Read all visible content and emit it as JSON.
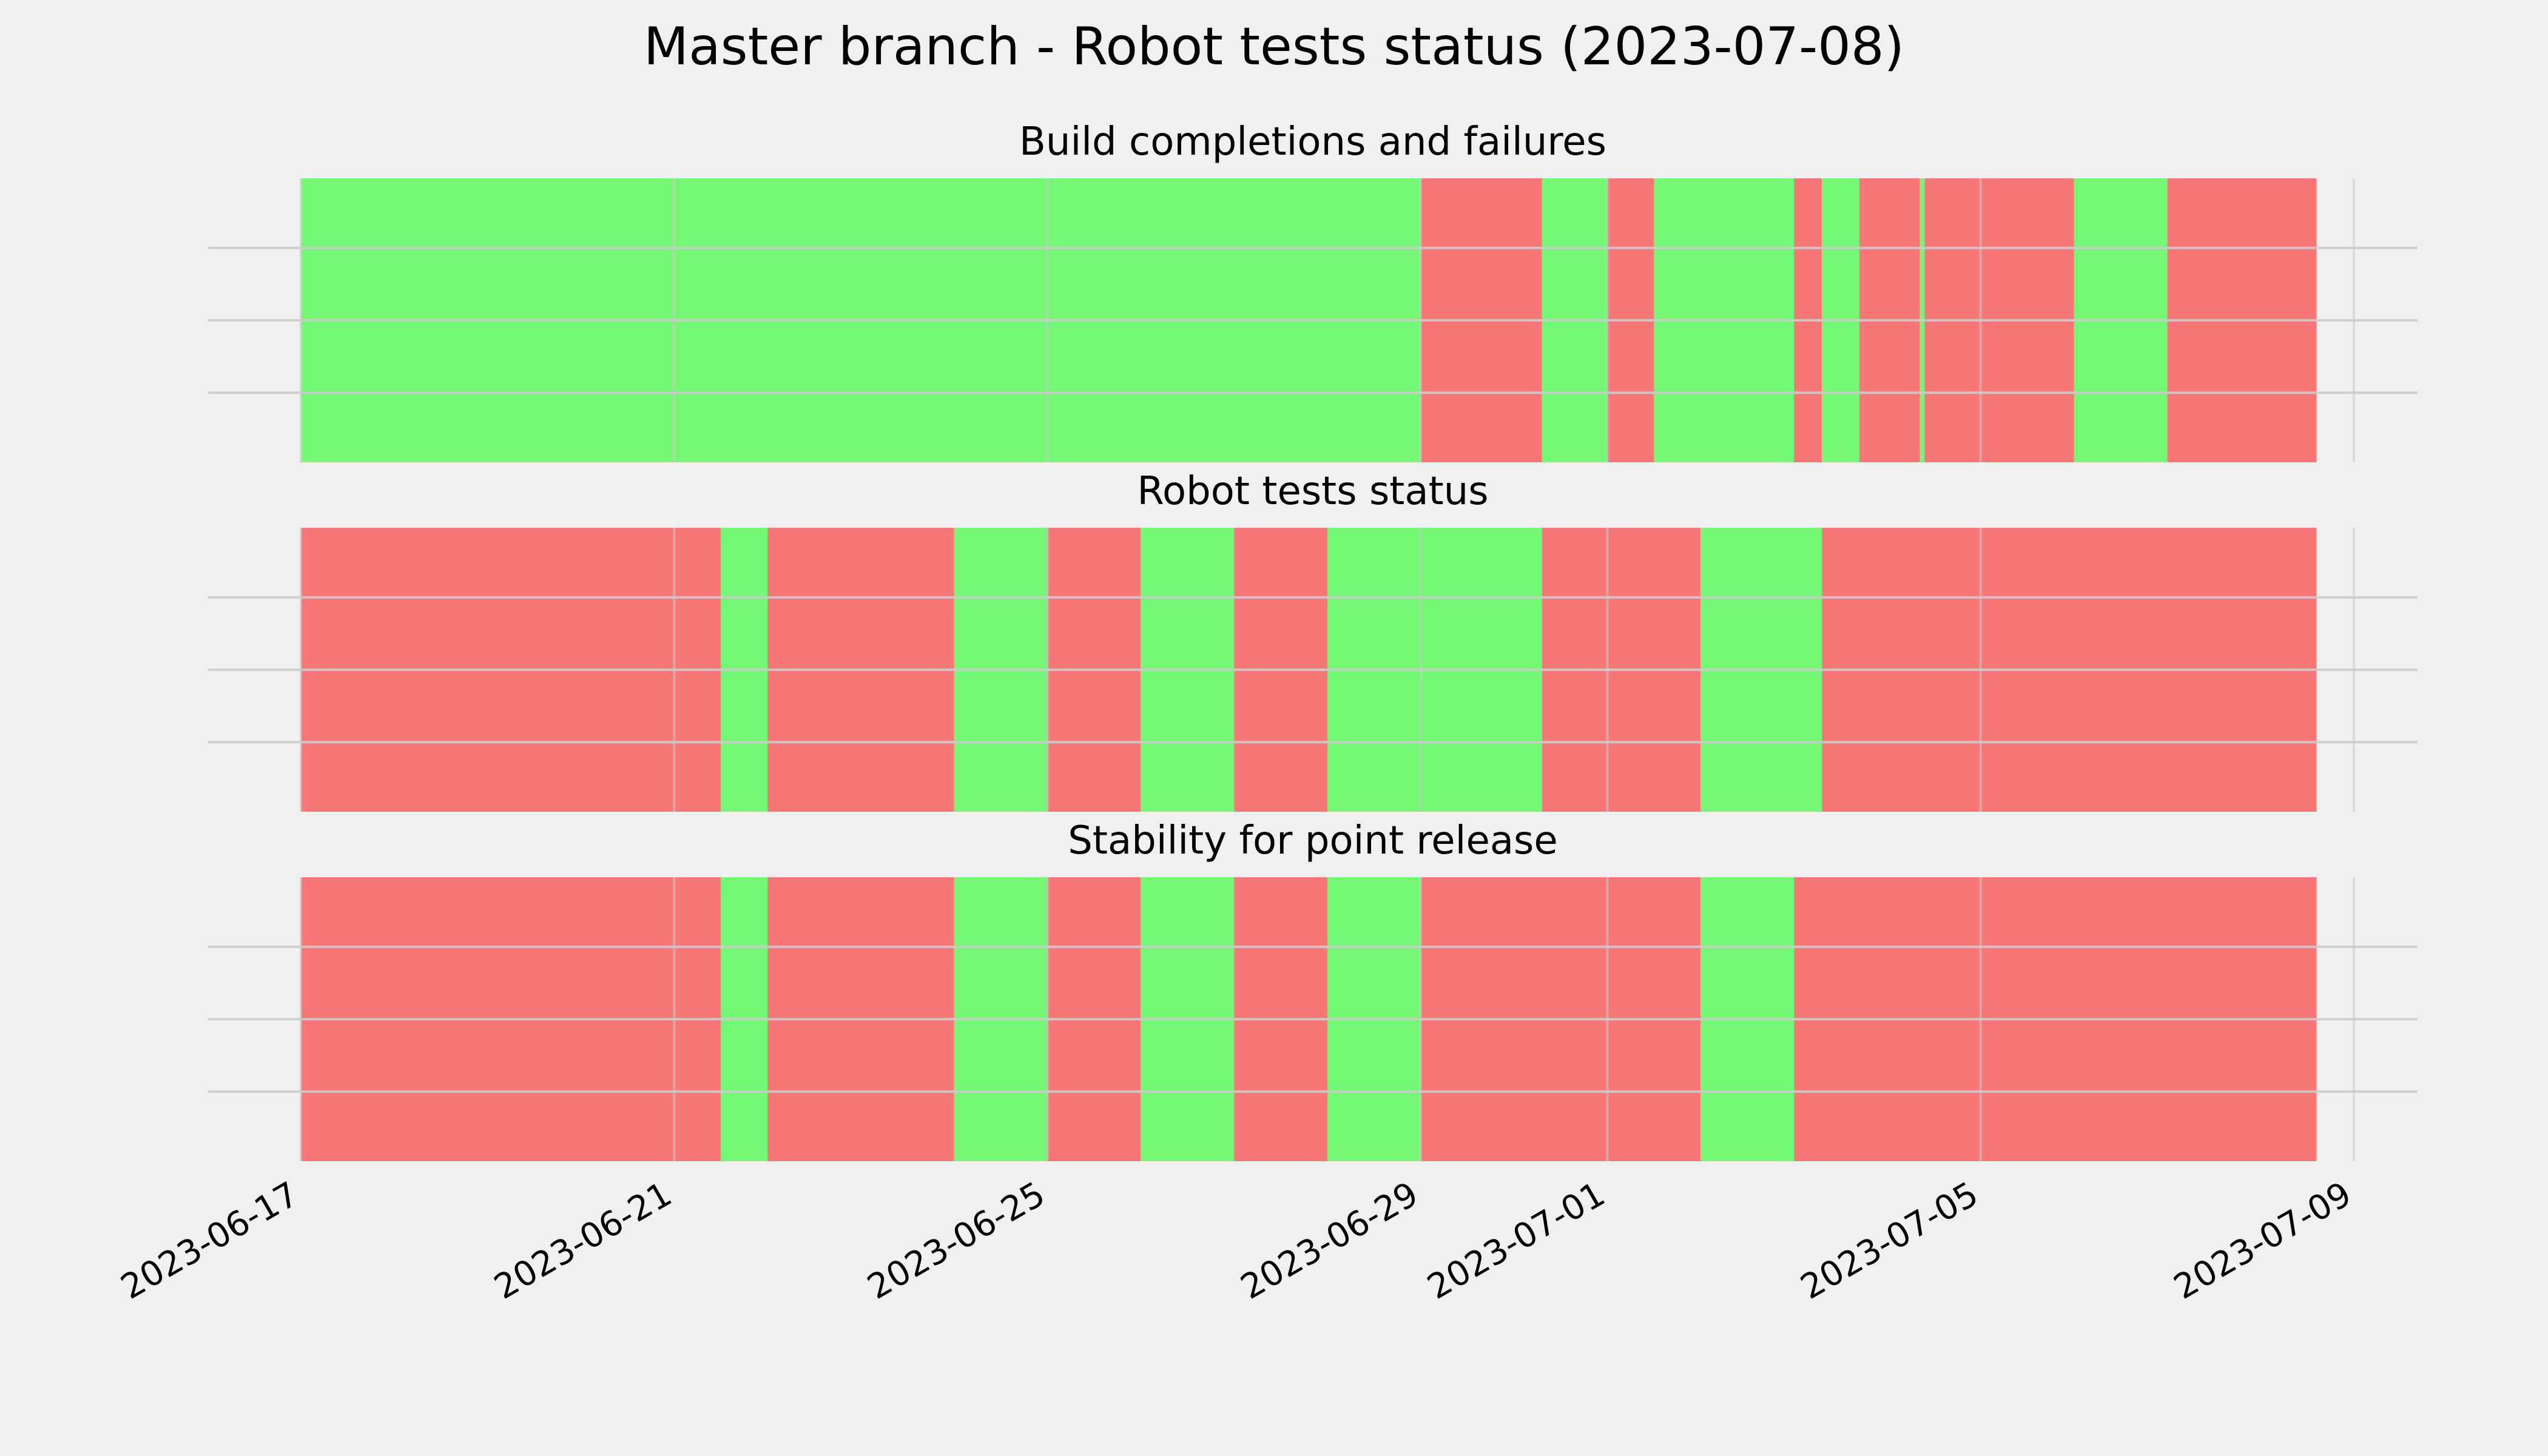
{
  "title": "Master branch - Robot tests status (2023-07-08)",
  "colors": {
    "background": "#f0f0f0",
    "pass": "#74f774",
    "fail": "#f77777",
    "grid": "#cbcbcb"
  },
  "chart_data": [
    {
      "type": "timeline",
      "title": "Build completions and failures",
      "xlim": [
        "2023-06-17",
        "2023-07-09"
      ],
      "grid": true,
      "intervals": [
        {
          "start": "2023-06-17",
          "end": "2023-06-29",
          "status": "pass"
        },
        {
          "start": "2023-06-29",
          "end": "2023-06-30.3",
          "status": "fail"
        },
        {
          "start": "2023-06-30.3",
          "end": "2023-07-01",
          "status": "pass"
        },
        {
          "start": "2023-07-01",
          "end": "2023-07-01.5",
          "status": "fail"
        },
        {
          "start": "2023-07-01.5",
          "end": "2023-07-03",
          "status": "pass"
        },
        {
          "start": "2023-07-03",
          "end": "2023-07-03.3",
          "status": "fail"
        },
        {
          "start": "2023-07-03.3",
          "end": "2023-07-03.7",
          "status": "pass"
        },
        {
          "start": "2023-07-03.7",
          "end": "2023-07-04.35",
          "status": "fail"
        },
        {
          "start": "2023-07-04.35",
          "end": "2023-07-04.4",
          "status": "pass"
        },
        {
          "start": "2023-07-04.4",
          "end": "2023-07-06",
          "status": "fail"
        },
        {
          "start": "2023-07-06",
          "end": "2023-07-07",
          "status": "pass"
        },
        {
          "start": "2023-07-07",
          "end": "2023-07-08.6",
          "status": "fail"
        }
      ]
    },
    {
      "type": "timeline",
      "title": "Robot tests status",
      "xlim": [
        "2023-06-17",
        "2023-07-09"
      ],
      "grid": true,
      "intervals": [
        {
          "start": "2023-06-17",
          "end": "2023-06-21.5",
          "status": "fail"
        },
        {
          "start": "2023-06-21.5",
          "end": "2023-06-22",
          "status": "pass"
        },
        {
          "start": "2023-06-22",
          "end": "2023-06-24",
          "status": "fail"
        },
        {
          "start": "2023-06-24",
          "end": "2023-06-25",
          "status": "pass"
        },
        {
          "start": "2023-06-25",
          "end": "2023-06-26",
          "status": "fail"
        },
        {
          "start": "2023-06-26",
          "end": "2023-06-27",
          "status": "pass"
        },
        {
          "start": "2023-06-27",
          "end": "2023-06-28",
          "status": "fail"
        },
        {
          "start": "2023-06-28",
          "end": "2023-06-30.3",
          "status": "pass"
        },
        {
          "start": "2023-06-30.3",
          "end": "2023-07-02",
          "status": "fail"
        },
        {
          "start": "2023-07-02",
          "end": "2023-07-03.3",
          "status": "pass"
        },
        {
          "start": "2023-07-03.3",
          "end": "2023-07-08.6",
          "status": "fail"
        }
      ]
    },
    {
      "type": "timeline",
      "title": "Stability for point release",
      "xlim": [
        "2023-06-17",
        "2023-07-09"
      ],
      "grid": true,
      "intervals": [
        {
          "start": "2023-06-17",
          "end": "2023-06-21.5",
          "status": "fail"
        },
        {
          "start": "2023-06-21.5",
          "end": "2023-06-22",
          "status": "pass"
        },
        {
          "start": "2023-06-22",
          "end": "2023-06-24",
          "status": "fail"
        },
        {
          "start": "2023-06-24",
          "end": "2023-06-25",
          "status": "pass"
        },
        {
          "start": "2023-06-25",
          "end": "2023-06-26",
          "status": "fail"
        },
        {
          "start": "2023-06-26",
          "end": "2023-06-27",
          "status": "pass"
        },
        {
          "start": "2023-06-27",
          "end": "2023-06-28",
          "status": "fail"
        },
        {
          "start": "2023-06-28",
          "end": "2023-06-29",
          "status": "pass"
        },
        {
          "start": "2023-06-29",
          "end": "2023-07-02",
          "status": "fail"
        },
        {
          "start": "2023-07-02",
          "end": "2023-07-03",
          "status": "pass"
        },
        {
          "start": "2023-07-03",
          "end": "2023-07-08.6",
          "status": "fail"
        }
      ]
    }
  ],
  "x_ticks": [
    "2023-06-17",
    "2023-06-21",
    "2023-06-25",
    "2023-06-29",
    "2023-07-01",
    "2023-07-05",
    "2023-07-09"
  ]
}
